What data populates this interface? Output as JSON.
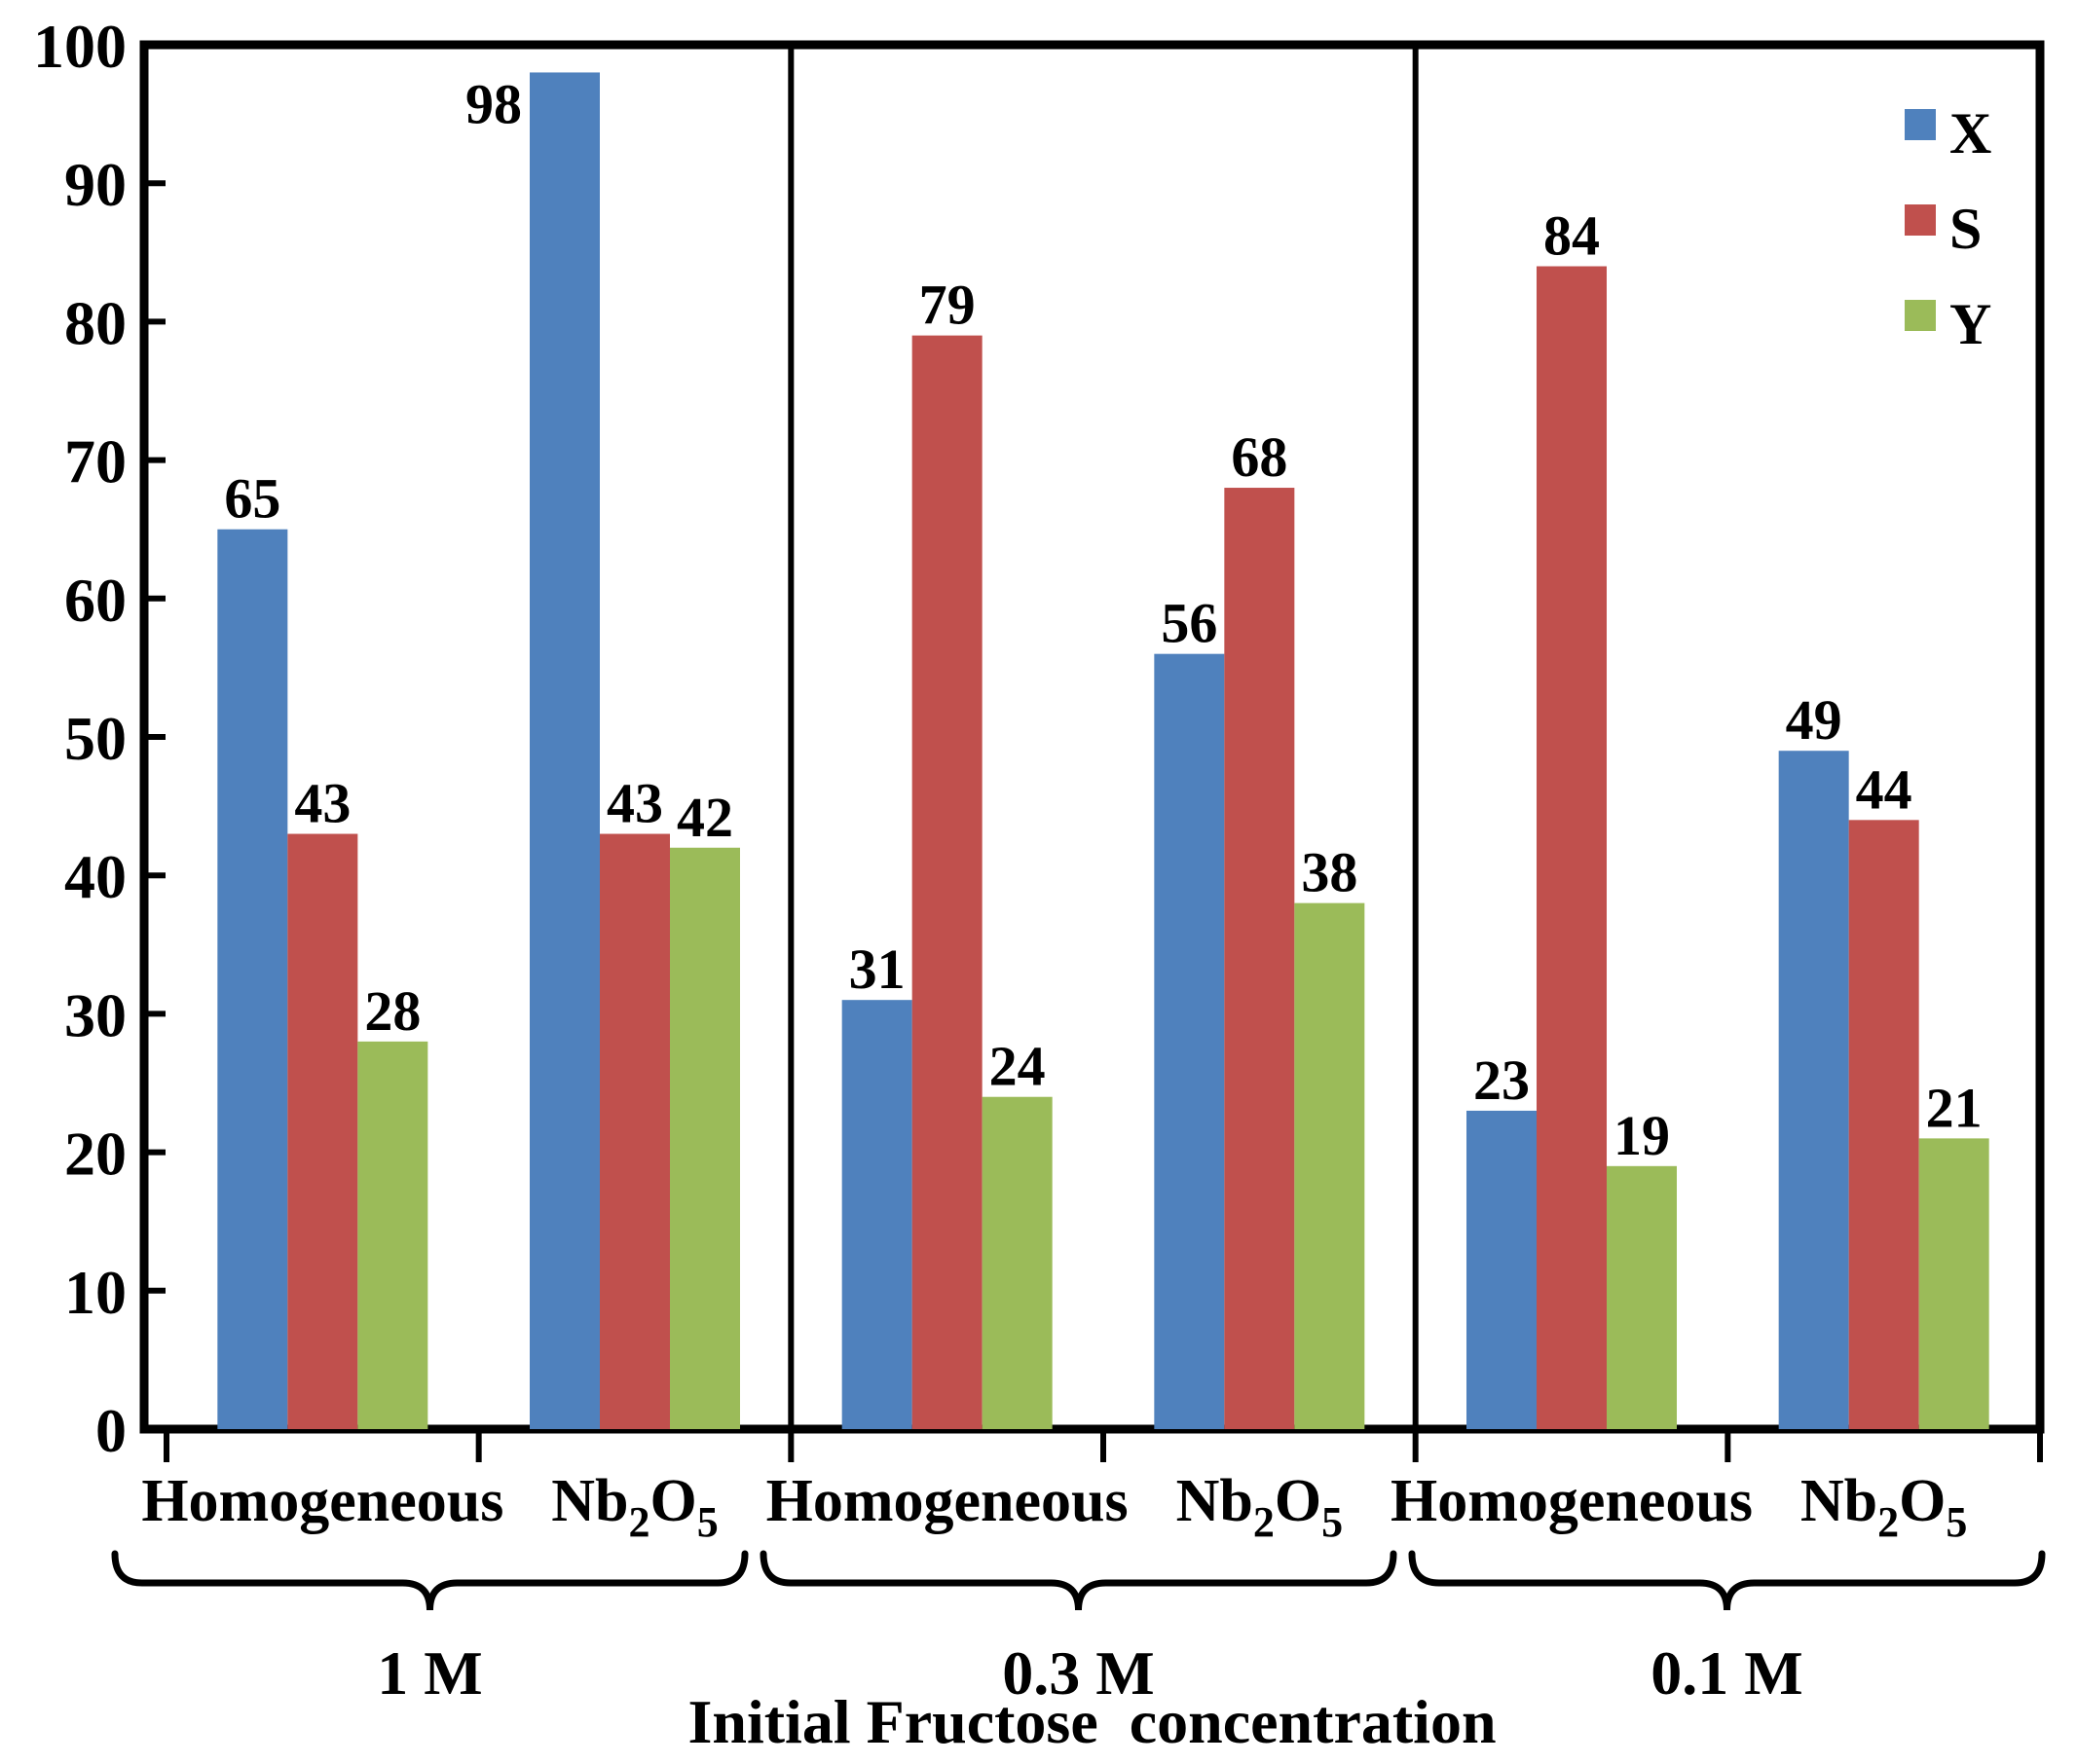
{
  "chart_data": {
    "type": "bar",
    "title": "",
    "xlabel": "Initial Fructose  concentration",
    "ylabel": "",
    "ylim": [
      0,
      100
    ],
    "ytick_step": 10,
    "ytick_labels": [
      "0",
      "10",
      "20",
      "30",
      "40",
      "50",
      "60",
      "70",
      "80",
      "90",
      "100"
    ],
    "grid": false,
    "frame": true,
    "panel_dividers": true,
    "legend": {
      "position": "top-right",
      "entries": [
        {
          "name": "X",
          "color": "#4F81BD"
        },
        {
          "name": "S",
          "color": "#C0504D"
        },
        {
          "name": "Y",
          "color": "#9BBB59"
        }
      ]
    },
    "categories": [
      {
        "label": "Homogeneous",
        "rich": [
          [
            "Homogeneous",
            false
          ]
        ]
      },
      {
        "label": "Nb2O5",
        "rich": [
          [
            "Nb",
            false
          ],
          [
            "2",
            true
          ],
          [
            "O",
            false
          ],
          [
            "5",
            true
          ]
        ]
      },
      {
        "label": "Homogeneous",
        "rich": [
          [
            "Homogeneous",
            false
          ]
        ]
      },
      {
        "label": "Nb2O5",
        "rich": [
          [
            "Nb",
            false
          ],
          [
            "2",
            true
          ],
          [
            "O",
            false
          ],
          [
            "5",
            true
          ]
        ]
      },
      {
        "label": "Homogeneous",
        "rich": [
          [
            "Homogeneous",
            false
          ]
        ]
      },
      {
        "label": "Nb2O5",
        "rich": [
          [
            "Nb",
            false
          ],
          [
            "2",
            true
          ],
          [
            "O",
            false
          ],
          [
            "5",
            true
          ]
        ]
      }
    ],
    "groups": [
      {
        "label": "1 M",
        "category_span": [
          0,
          2
        ]
      },
      {
        "label": "0.3 M",
        "category_span": [
          2,
          4
        ]
      },
      {
        "label": "0.1 M",
        "category_span": [
          4,
          6
        ]
      }
    ],
    "series": [
      {
        "name": "X",
        "color": "#4F81BD",
        "values": [
          65,
          98,
          31,
          56,
          23,
          49
        ]
      },
      {
        "name": "S",
        "color": "#C0504D",
        "values": [
          43,
          43,
          79,
          68,
          84,
          44
        ]
      },
      {
        "name": "Y",
        "color": "#9BBB59",
        "values": [
          28,
          42,
          24,
          38,
          19,
          21
        ]
      }
    ],
    "bar_labels": [
      [
        "65",
        "98",
        "31",
        "56",
        "23",
        "49"
      ],
      [
        "43",
        "43",
        "79",
        "68",
        "84",
        "44"
      ],
      [
        "28",
        "42",
        "24",
        "38",
        "19",
        "21"
      ]
    ]
  }
}
